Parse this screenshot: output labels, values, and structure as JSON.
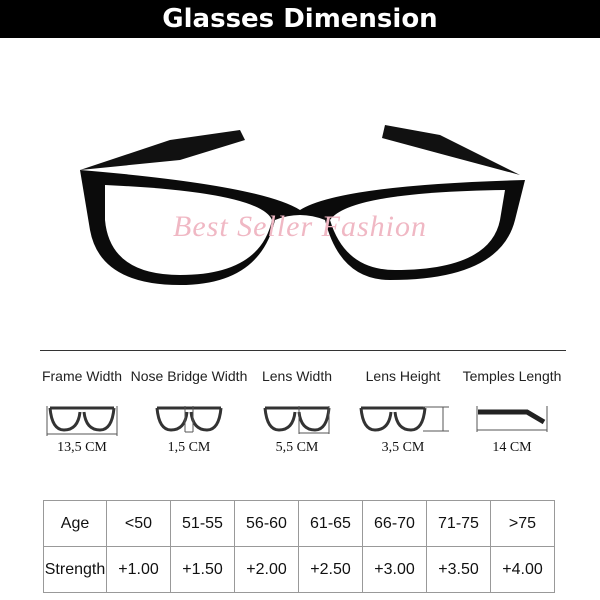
{
  "title": "Glasses Dimension",
  "watermark": "Best Seller Fashion",
  "dimensions": [
    {
      "label": "Frame Width",
      "value": "13,5 CM"
    },
    {
      "label": "Nose Bridge Width",
      "value": "1,5 CM"
    },
    {
      "label": "Lens Width",
      "value": "5,5 CM"
    },
    {
      "label": "Lens Height",
      "value": "3,5 CM"
    },
    {
      "label": "Temples Length",
      "value": "14 CM"
    }
  ],
  "table": {
    "rows": [
      [
        "Age",
        "<50",
        "51-55",
        "56-60",
        "61-65",
        "66-70",
        "71-75",
        ">75"
      ],
      [
        "Strength",
        "+1.00",
        "+1.50",
        "+2.00",
        "+2.50",
        "+3.00",
        "+3.50",
        "+4.00"
      ]
    ]
  }
}
